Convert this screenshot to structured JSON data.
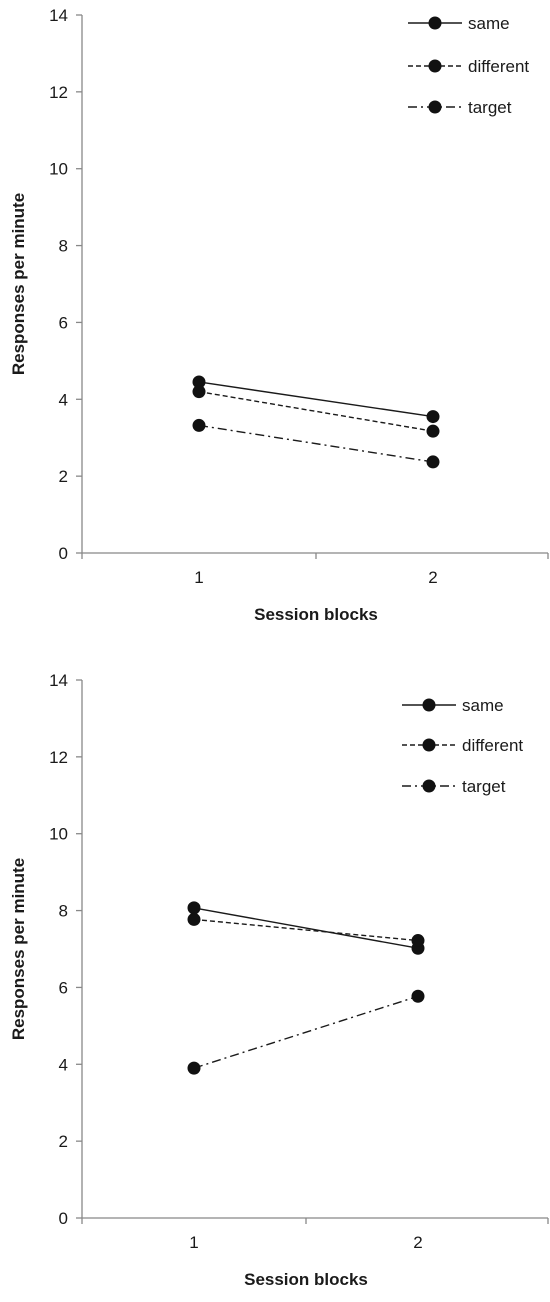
{
  "chart_data": [
    {
      "type": "line",
      "xlabel": "Session blocks",
      "ylabel": "Responses per minute",
      "ylim": [
        0,
        14
      ],
      "yticks": [
        "0",
        "2",
        "4",
        "6",
        "8",
        "10",
        "12",
        "14"
      ],
      "categories": [
        "1",
        "2"
      ],
      "legend": "top-right",
      "grid": false,
      "series": [
        {
          "name": "same",
          "values": [
            4.45,
            3.55
          ],
          "line_style": "solid"
        },
        {
          "name": "different",
          "values": [
            4.2,
            3.17
          ],
          "line_style": "dashed"
        },
        {
          "name": "target",
          "values": [
            3.32,
            2.37
          ],
          "line_style": "dash-dot"
        }
      ]
    },
    {
      "type": "line",
      "xlabel": "Session blocks",
      "ylabel": "Responses per minute",
      "ylim": [
        0,
        14
      ],
      "yticks": [
        "0",
        "2",
        "4",
        "6",
        "8",
        "10",
        "12",
        "14"
      ],
      "categories": [
        "1",
        "2"
      ],
      "legend": "top-right",
      "grid": false,
      "series": [
        {
          "name": "same",
          "values": [
            8.07,
            7.02
          ],
          "line_style": "solid"
        },
        {
          "name": "different",
          "values": [
            7.77,
            7.22
          ],
          "line_style": "dashed"
        },
        {
          "name": "target",
          "values": [
            3.9,
            5.77
          ],
          "line_style": "dash-dot"
        }
      ]
    }
  ],
  "colors": {
    "line": "#1a1a1a",
    "axis": "#888888",
    "marker": "#111111"
  }
}
